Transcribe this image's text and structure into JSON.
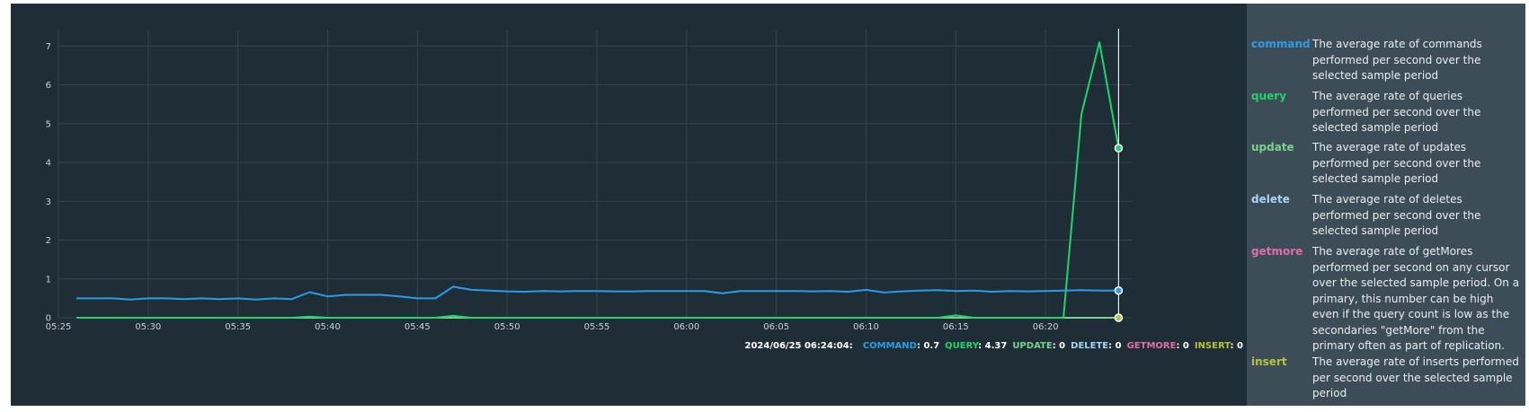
{
  "colors": {
    "background": "#1f2d37",
    "legend_background": "#3d4d58",
    "grid": "#34444f",
    "axis_text": "#c9d2d8",
    "cursor": "#e8e8e8",
    "command": "#2b9de6",
    "query": "#22d46a",
    "update": "#7ad18c",
    "delete": "#a5d6f5",
    "getmore": "#e06ea9",
    "insert": "#b5c43a"
  },
  "status": {
    "timestamp": "2024/06/25 06:24:04:",
    "items": [
      {
        "label": "COMMAND",
        "value": ": 0.7",
        "color": "#2b9de6"
      },
      {
        "label": "QUERY",
        "value": ": 4.37",
        "color": "#22d46a"
      },
      {
        "label": "UPDATE",
        "value": ": 0",
        "color": "#7ad18c"
      },
      {
        "label": "DELETE",
        "value": ": 0",
        "color": "#a5d6f5"
      },
      {
        "label": "GETMORE",
        "value": ": 0",
        "color": "#e06ea9"
      },
      {
        "label": "INSERT",
        "value": ": 0",
        "color": "#b5c43a"
      }
    ]
  },
  "legend": [
    {
      "key": "command",
      "color": "#2b9de6",
      "description": "The average rate of commands performed per second over the selected sample period"
    },
    {
      "key": "query",
      "color": "#22d46a",
      "description": "The average rate of queries performed per second over the selected sample period"
    },
    {
      "key": "update",
      "color": "#7ad18c",
      "description": "The average rate of updates performed per second over the selected sample period"
    },
    {
      "key": "delete",
      "color": "#a5d6f5",
      "description": "The average rate of deletes performed per second over the selected sample period"
    },
    {
      "key": "getmore",
      "color": "#e06ea9",
      "description": "The average rate of getMores performed per second on any cursor over the selected sample period. On a primary, this number can be high even if the query count is low as the secondaries \"getMore\" from the primary often as part of replication."
    },
    {
      "key": "insert",
      "color": "#b5c43a",
      "description": "The average rate of inserts performed per second over the selected sample period"
    }
  ],
  "chart_data": {
    "type": "line",
    "x_unit": "minutes since 05:25",
    "xlim": [
      0,
      59.8
    ],
    "ylim": [
      0,
      7.4
    ],
    "x_ticks": [
      {
        "x": 0,
        "label": "05:25"
      },
      {
        "x": 5,
        "label": "05:30"
      },
      {
        "x": 10,
        "label": "05:35"
      },
      {
        "x": 15,
        "label": "05:40"
      },
      {
        "x": 20,
        "label": "05:45"
      },
      {
        "x": 25,
        "label": "05:50"
      },
      {
        "x": 30,
        "label": "05:55"
      },
      {
        "x": 35,
        "label": "06:00"
      },
      {
        "x": 40,
        "label": "06:05"
      },
      {
        "x": 45,
        "label": "06:10"
      },
      {
        "x": 50,
        "label": "06:15"
      },
      {
        "x": 55,
        "label": "06:20"
      }
    ],
    "y_ticks": [
      0,
      1,
      2,
      3,
      4,
      5,
      6,
      7
    ],
    "grid": true,
    "cursor_x": 59.07,
    "series": [
      {
        "name": "command",
        "color": "#2b9de6",
        "marker_value": 0.7,
        "x": [
          1,
          2,
          3,
          4,
          5,
          6,
          7,
          8,
          9,
          10,
          11,
          12,
          13,
          14,
          15,
          16,
          17,
          18,
          19,
          20,
          21,
          22,
          23,
          24,
          25,
          26,
          27,
          28,
          29,
          30,
          31,
          32,
          33,
          34,
          35,
          36,
          37,
          38,
          39,
          40,
          41,
          42,
          43,
          44,
          45,
          46,
          47,
          48,
          49,
          50,
          51,
          52,
          53,
          54,
          55,
          56,
          57,
          58,
          59.07
        ],
        "y": [
          0.5,
          0.5,
          0.5,
          0.47,
          0.5,
          0.5,
          0.48,
          0.5,
          0.48,
          0.5,
          0.47,
          0.5,
          0.48,
          0.66,
          0.55,
          0.59,
          0.59,
          0.59,
          0.55,
          0.5,
          0.5,
          0.8,
          0.72,
          0.7,
          0.68,
          0.67,
          0.69,
          0.68,
          0.69,
          0.69,
          0.68,
          0.68,
          0.69,
          0.69,
          0.69,
          0.69,
          0.63,
          0.69,
          0.69,
          0.69,
          0.69,
          0.68,
          0.69,
          0.67,
          0.72,
          0.65,
          0.68,
          0.7,
          0.71,
          0.69,
          0.7,
          0.67,
          0.69,
          0.68,
          0.69,
          0.7,
          0.71,
          0.7,
          0.7
        ]
      },
      {
        "name": "query",
        "color": "#22d46a",
        "marker_value": 4.37,
        "x": [
          1,
          5,
          10,
          12,
          13,
          14,
          15,
          16,
          20,
          21,
          22,
          23,
          24,
          40,
          49,
          50,
          51,
          52,
          56,
          57,
          58,
          59.07
        ],
        "y": [
          0,
          0,
          0,
          0,
          0,
          0.03,
          0,
          0,
          0,
          0,
          0.05,
          0,
          0,
          0,
          0,
          0.06,
          0,
          0,
          0,
          5.25,
          7.1,
          4.37
        ]
      },
      {
        "name": "update",
        "color": "#7ad18c",
        "marker_value": 0,
        "x": [
          1,
          59.07
        ],
        "y": [
          0,
          0
        ]
      },
      {
        "name": "delete",
        "color": "#a5d6f5",
        "marker_value": 0,
        "x": [
          1,
          59.07
        ],
        "y": [
          0,
          0
        ]
      },
      {
        "name": "getmore",
        "color": "#e06ea9",
        "marker_value": 0,
        "x": [
          1,
          59.07
        ],
        "y": [
          0,
          0
        ]
      },
      {
        "name": "insert",
        "color": "#b5c43a",
        "marker_value": 0,
        "x": [
          1,
          59.07
        ],
        "y": [
          0,
          0
        ]
      }
    ]
  }
}
